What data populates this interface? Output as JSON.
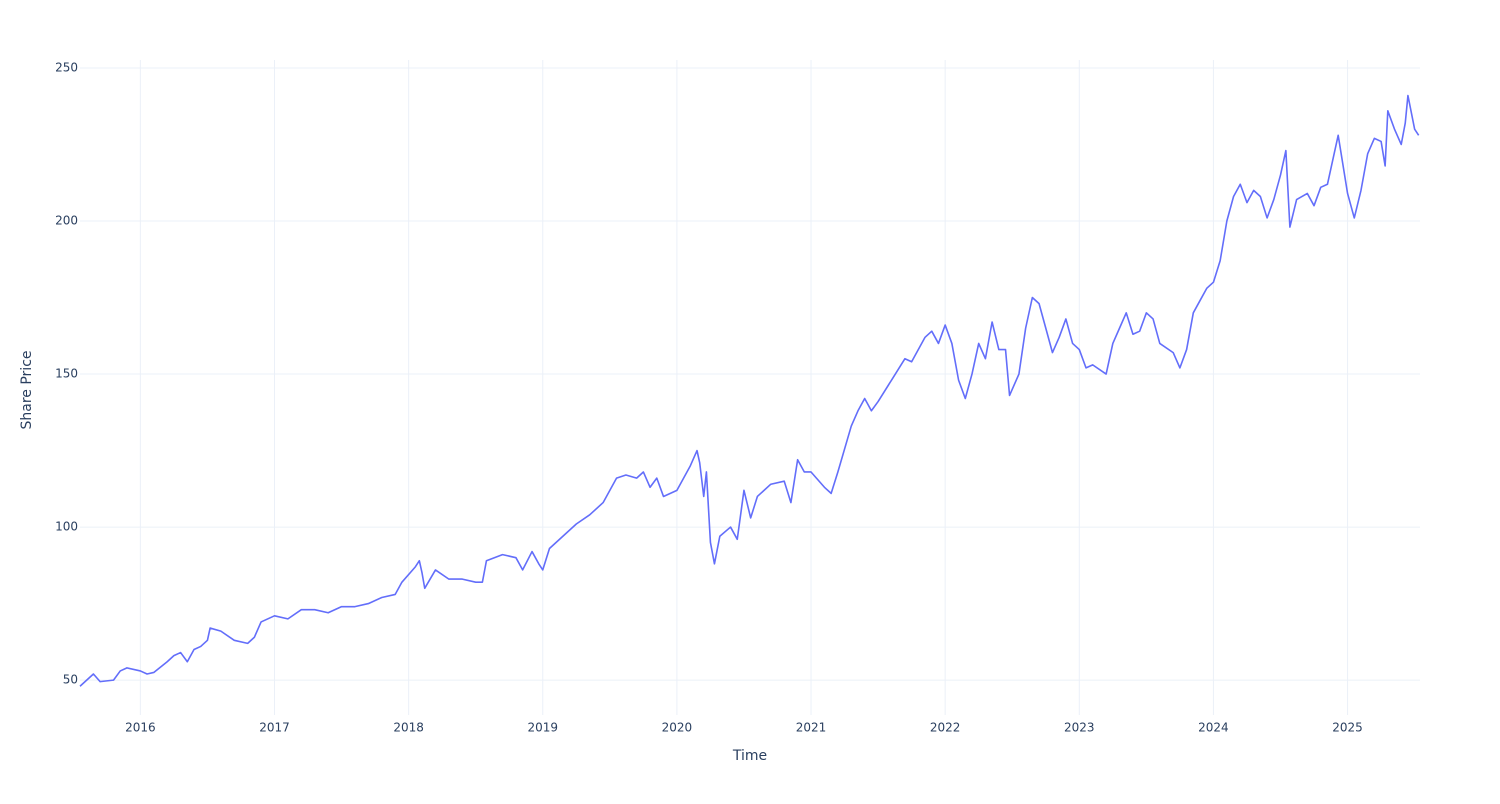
{
  "chart_data": {
    "type": "line",
    "x_label": "Time",
    "y_label": "Share Price",
    "x": [
      2015.55,
      2015.6,
      2015.65,
      2015.7,
      2015.8,
      2015.85,
      2015.9,
      2016.0,
      2016.05,
      2016.1,
      2016.2,
      2016.25,
      2016.3,
      2016.35,
      2016.4,
      2016.45,
      2016.5,
      2016.52,
      2016.6,
      2016.7,
      2016.8,
      2016.85,
      2016.9,
      2017.0,
      2017.1,
      2017.2,
      2017.3,
      2017.4,
      2017.5,
      2017.6,
      2017.7,
      2017.8,
      2017.9,
      2017.95,
      2018.05,
      2018.08,
      2018.1,
      2018.12,
      2018.2,
      2018.3,
      2018.4,
      2018.5,
      2018.55,
      2018.58,
      2018.7,
      2018.8,
      2018.85,
      2018.92,
      2018.97,
      2019.0,
      2019.05,
      2019.15,
      2019.25,
      2019.35,
      2019.45,
      2019.55,
      2019.62,
      2019.7,
      2019.75,
      2019.8,
      2019.85,
      2019.9,
      2020.0,
      2020.1,
      2020.15,
      2020.17,
      2020.2,
      2020.22,
      2020.25,
      2020.28,
      2020.32,
      2020.4,
      2020.45,
      2020.5,
      2020.55,
      2020.6,
      2020.7,
      2020.8,
      2020.85,
      2020.9,
      2020.95,
      2021.0,
      2021.1,
      2021.15,
      2021.2,
      2021.3,
      2021.35,
      2021.4,
      2021.45,
      2021.5,
      2021.6,
      2021.7,
      2021.75,
      2021.8,
      2021.85,
      2021.9,
      2021.95,
      2022.0,
      2022.05,
      2022.1,
      2022.15,
      2022.2,
      2022.25,
      2022.3,
      2022.35,
      2022.4,
      2022.45,
      2022.48,
      2022.55,
      2022.6,
      2022.65,
      2022.7,
      2022.75,
      2022.8,
      2022.85,
      2022.9,
      2022.95,
      2023.0,
      2023.05,
      2023.1,
      2023.2,
      2023.25,
      2023.3,
      2023.35,
      2023.4,
      2023.45,
      2023.5,
      2023.55,
      2023.6,
      2023.7,
      2023.75,
      2023.8,
      2023.85,
      2023.9,
      2023.95,
      2024.0,
      2024.05,
      2024.1,
      2024.15,
      2024.2,
      2024.25,
      2024.3,
      2024.35,
      2024.4,
      2024.45,
      2024.5,
      2024.54,
      2024.57,
      2024.62,
      2024.7,
      2024.75,
      2024.8,
      2024.85,
      2024.9,
      2024.93,
      2025.0,
      2025.05,
      2025.1,
      2025.15,
      2025.2,
      2025.25,
      2025.28,
      2025.3,
      2025.35,
      2025.4,
      2025.43,
      2025.45,
      2025.5,
      2025.53
    ],
    "values": [
      48,
      50,
      52,
      49.5,
      50,
      53,
      54,
      53,
      52,
      52.5,
      56,
      58,
      59,
      56,
      60,
      61,
      63,
      67,
      66,
      63,
      62,
      64,
      69,
      71,
      70,
      73,
      73,
      72,
      74,
      74,
      75,
      77,
      78,
      82,
      87,
      89,
      85,
      80,
      86,
      83,
      83,
      82,
      82,
      89,
      91,
      90,
      86,
      92,
      88,
      86,
      93,
      97,
      101,
      104,
      108,
      116,
      117,
      116,
      118,
      113,
      116,
      110,
      112,
      120,
      125,
      121,
      110,
      118,
      95,
      88,
      97,
      100,
      96,
      112,
      103,
      110,
      114,
      115,
      108,
      122,
      118,
      118,
      113,
      111,
      118,
      133,
      138,
      142,
      138,
      141,
      148,
      155,
      154,
      158,
      162,
      164,
      160,
      166,
      160,
      148,
      142,
      150,
      160,
      155,
      167,
      158,
      158,
      143,
      150,
      165,
      175,
      173,
      165,
      157,
      162,
      168,
      160,
      158,
      152,
      153,
      150,
      160,
      165,
      170,
      163,
      164,
      170,
      168,
      160,
      157,
      152,
      158,
      170,
      174,
      178,
      180,
      187,
      200,
      208,
      212,
      206,
      210,
      208,
      201,
      207,
      215,
      223,
      198,
      207,
      209,
      205,
      211,
      212,
      222,
      228,
      209,
      201,
      210,
      222,
      227,
      226,
      218,
      236,
      230,
      225,
      232,
      241,
      230,
      228
    ],
    "color": "#636efa",
    "xlim": [
      2015.55,
      2025.54
    ],
    "xticks": [
      2016,
      2017,
      2018,
      2019,
      2020,
      2021,
      2022,
      2023,
      2024,
      2025
    ],
    "ylim": [
      38.6,
      252.6
    ],
    "yticks": [
      50,
      100,
      150,
      200,
      250
    ],
    "grid": true
  }
}
